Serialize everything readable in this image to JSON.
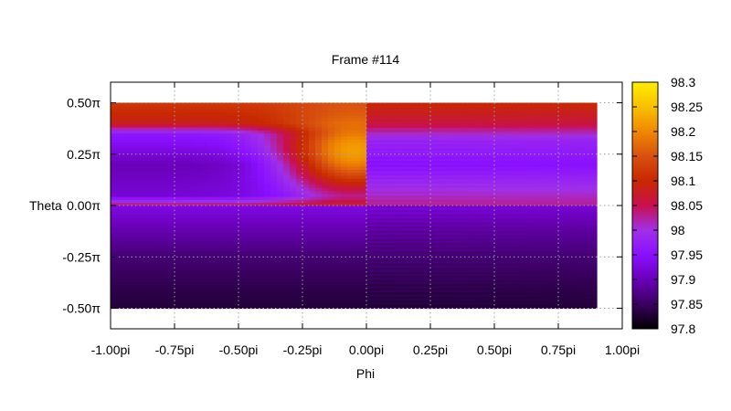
{
  "chart_data": {
    "type": "heatmap",
    "title": "Frame #114",
    "xlabel": "Phi",
    "ylabel": "Theta",
    "x_range": [
      -1.0,
      1.0
    ],
    "y_range": [
      -0.6,
      0.6
    ],
    "data_extent": {
      "x": [
        -1.0,
        0.9
      ],
      "y": [
        -0.5,
        0.5
      ]
    },
    "x_ticks": [
      {
        "value": -1.0,
        "label": "-1.00pi"
      },
      {
        "value": -0.75,
        "label": "-0.75pi"
      },
      {
        "value": -0.5,
        "label": "-0.50pi"
      },
      {
        "value": -0.25,
        "label": "-0.25pi"
      },
      {
        "value": 0.0,
        "label": "0.00pi"
      },
      {
        "value": 0.25,
        "label": "0.25pi"
      },
      {
        "value": 0.5,
        "label": "0.50pi"
      },
      {
        "value": 0.75,
        "label": "0.75pi"
      },
      {
        "value": 1.0,
        "label": "1.00pi"
      }
    ],
    "y_ticks": [
      {
        "value": 0.5,
        "label": "0.50π"
      },
      {
        "value": 0.25,
        "label": "0.25π"
      },
      {
        "value": 0.0,
        "label": "0.00π"
      },
      {
        "value": -0.25,
        "label": "-0.25π"
      },
      {
        "value": -0.5,
        "label": "-0.50π"
      }
    ],
    "grid": true,
    "colorbar": {
      "min": 97.8,
      "max": 98.3,
      "placement": "right",
      "ticks": [
        {
          "value": 98.3,
          "label": "98.3"
        },
        {
          "value": 98.25,
          "label": "98.25"
        },
        {
          "value": 98.2,
          "label": "98.2"
        },
        {
          "value": 98.15,
          "label": "98.15"
        },
        {
          "value": 98.1,
          "label": "98.1"
        },
        {
          "value": 98.05,
          "label": "98.05"
        },
        {
          "value": 98.0,
          "label": "98"
        },
        {
          "value": 97.95,
          "label": "97.95"
        },
        {
          "value": 97.9,
          "label": "97.9"
        },
        {
          "value": 97.85,
          "label": "97.85"
        },
        {
          "value": 97.8,
          "label": "97.8"
        }
      ],
      "colormap": [
        "#000000",
        "#3a0060",
        "#6a00b8",
        "#8a10ff",
        "#a030e8",
        "#c81050",
        "#c82800",
        "#d85010",
        "#f08800",
        "#f8c000",
        "#ffee00"
      ]
    },
    "regions": [
      {
        "phi": [
          -1.0,
          0.0
        ],
        "theta": [
          0.0,
          0.5
        ],
        "style": "smooth",
        "profile": [
          {
            "t": 0.5,
            "v": 98.12
          },
          {
            "t": 0.4,
            "v": 98.08
          },
          {
            "t": 0.35,
            "v": 97.96
          },
          {
            "t": 0.2,
            "v": 97.9
          },
          {
            "t": 0.05,
            "v": 97.92
          },
          {
            "t": 0.0,
            "v": 98.05
          }
        ],
        "hotspot": {
          "phi": -0.05,
          "theta": 0.27,
          "value": 98.22
        }
      },
      {
        "phi": [
          0.0,
          0.9
        ],
        "theta": [
          0.0,
          0.5
        ],
        "style": "striped",
        "profile": [
          {
            "t": 0.5,
            "v": 98.1
          },
          {
            "t": 0.4,
            "v": 98.06
          },
          {
            "t": 0.32,
            "v": 97.98
          },
          {
            "t": 0.2,
            "v": 97.95
          },
          {
            "t": 0.08,
            "v": 98.0
          },
          {
            "t": 0.0,
            "v": 98.03
          }
        ]
      },
      {
        "phi": [
          -1.0,
          0.0
        ],
        "theta": [
          -0.5,
          0.0
        ],
        "style": "smooth",
        "profile": [
          {
            "t": 0.0,
            "v": 97.93
          },
          {
            "t": -0.1,
            "v": 97.9
          },
          {
            "t": -0.25,
            "v": 97.86
          },
          {
            "t": -0.4,
            "v": 97.84
          },
          {
            "t": -0.5,
            "v": 97.83
          }
        ]
      },
      {
        "phi": [
          0.0,
          0.9
        ],
        "theta": [
          -0.5,
          0.0
        ],
        "style": "striped",
        "profile": [
          {
            "t": 0.0,
            "v": 97.92
          },
          {
            "t": -0.1,
            "v": 97.89
          },
          {
            "t": -0.25,
            "v": 97.86
          },
          {
            "t": -0.4,
            "v": 97.84
          },
          {
            "t": -0.5,
            "v": 97.83
          }
        ]
      }
    ]
  }
}
